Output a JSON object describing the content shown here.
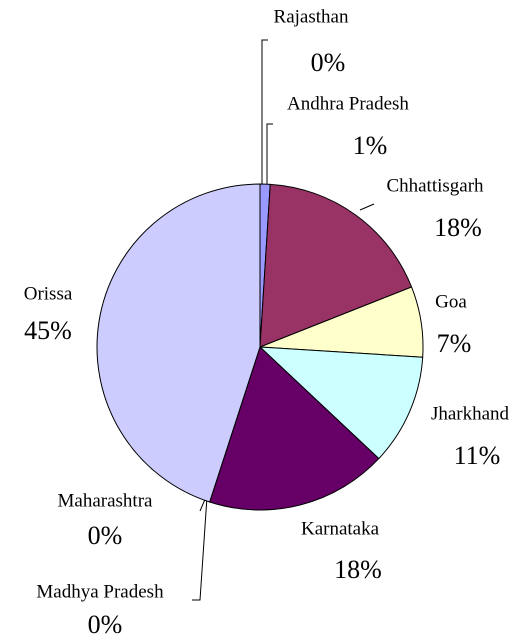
{
  "chart_data": {
    "type": "pie",
    "categories": [
      "Rajasthan",
      "Andhra Pradesh",
      "Chhattisgarh",
      "Goa",
      "Jharkhand",
      "Karnataka",
      "Maharashtra",
      "Madhya Pradesh",
      "Orissa"
    ],
    "values": [
      0,
      1,
      18,
      7,
      11,
      18,
      0,
      0,
      45
    ],
    "value_labels": [
      "0%",
      "1%",
      "18%",
      "7%",
      "11%",
      "18%",
      "0%",
      "0%",
      "45%"
    ],
    "colors": [
      "#6666ff",
      "#9999ff",
      "#993366",
      "#ffffcc",
      "#ccffff",
      "#660066",
      "#ff8080",
      "#0066cc",
      "#ccccff"
    ]
  }
}
